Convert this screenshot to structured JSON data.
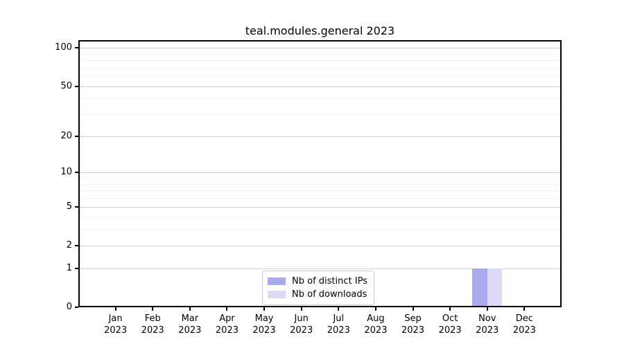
{
  "title": "teal.modules.general 2023",
  "chart_data": {
    "type": "bar",
    "title": "teal.modules.general 2023",
    "categories": [
      "Jan",
      "Feb",
      "Mar",
      "Apr",
      "May",
      "Jun",
      "Jul",
      "Aug",
      "Sep",
      "Oct",
      "Nov",
      "Dec"
    ],
    "year_label": "2023",
    "series": [
      {
        "name": "Nb of distinct IPs",
        "color": "#a9a9f0",
        "values": [
          0,
          0,
          0,
          0,
          0,
          0,
          0,
          0,
          0,
          0,
          1,
          0
        ]
      },
      {
        "name": "Nb of downloads",
        "color": "#dbdbf7",
        "values": [
          0,
          0,
          0,
          0,
          0,
          0,
          0,
          0,
          0,
          0,
          1,
          0
        ]
      }
    ],
    "xlabel": "",
    "ylabel": "",
    "yscale": "log1p",
    "ylim": [
      0,
      115
    ],
    "y_major_ticks": [
      0,
      1,
      2,
      5,
      10,
      20,
      50,
      100
    ],
    "y_minor_ticks": [
      3,
      4,
      6,
      7,
      8,
      9,
      30,
      40,
      60,
      70,
      80,
      90
    ],
    "grid": "horizontal-major-and-minor",
    "legend_position": "inside-bottom-center"
  },
  "colors": {
    "background": "#ffffff",
    "axis": "#000000",
    "grid_major": "#d2d2d2",
    "grid_minor": "#efefef",
    "legend_border": "#cccccc",
    "text": "#000000"
  }
}
